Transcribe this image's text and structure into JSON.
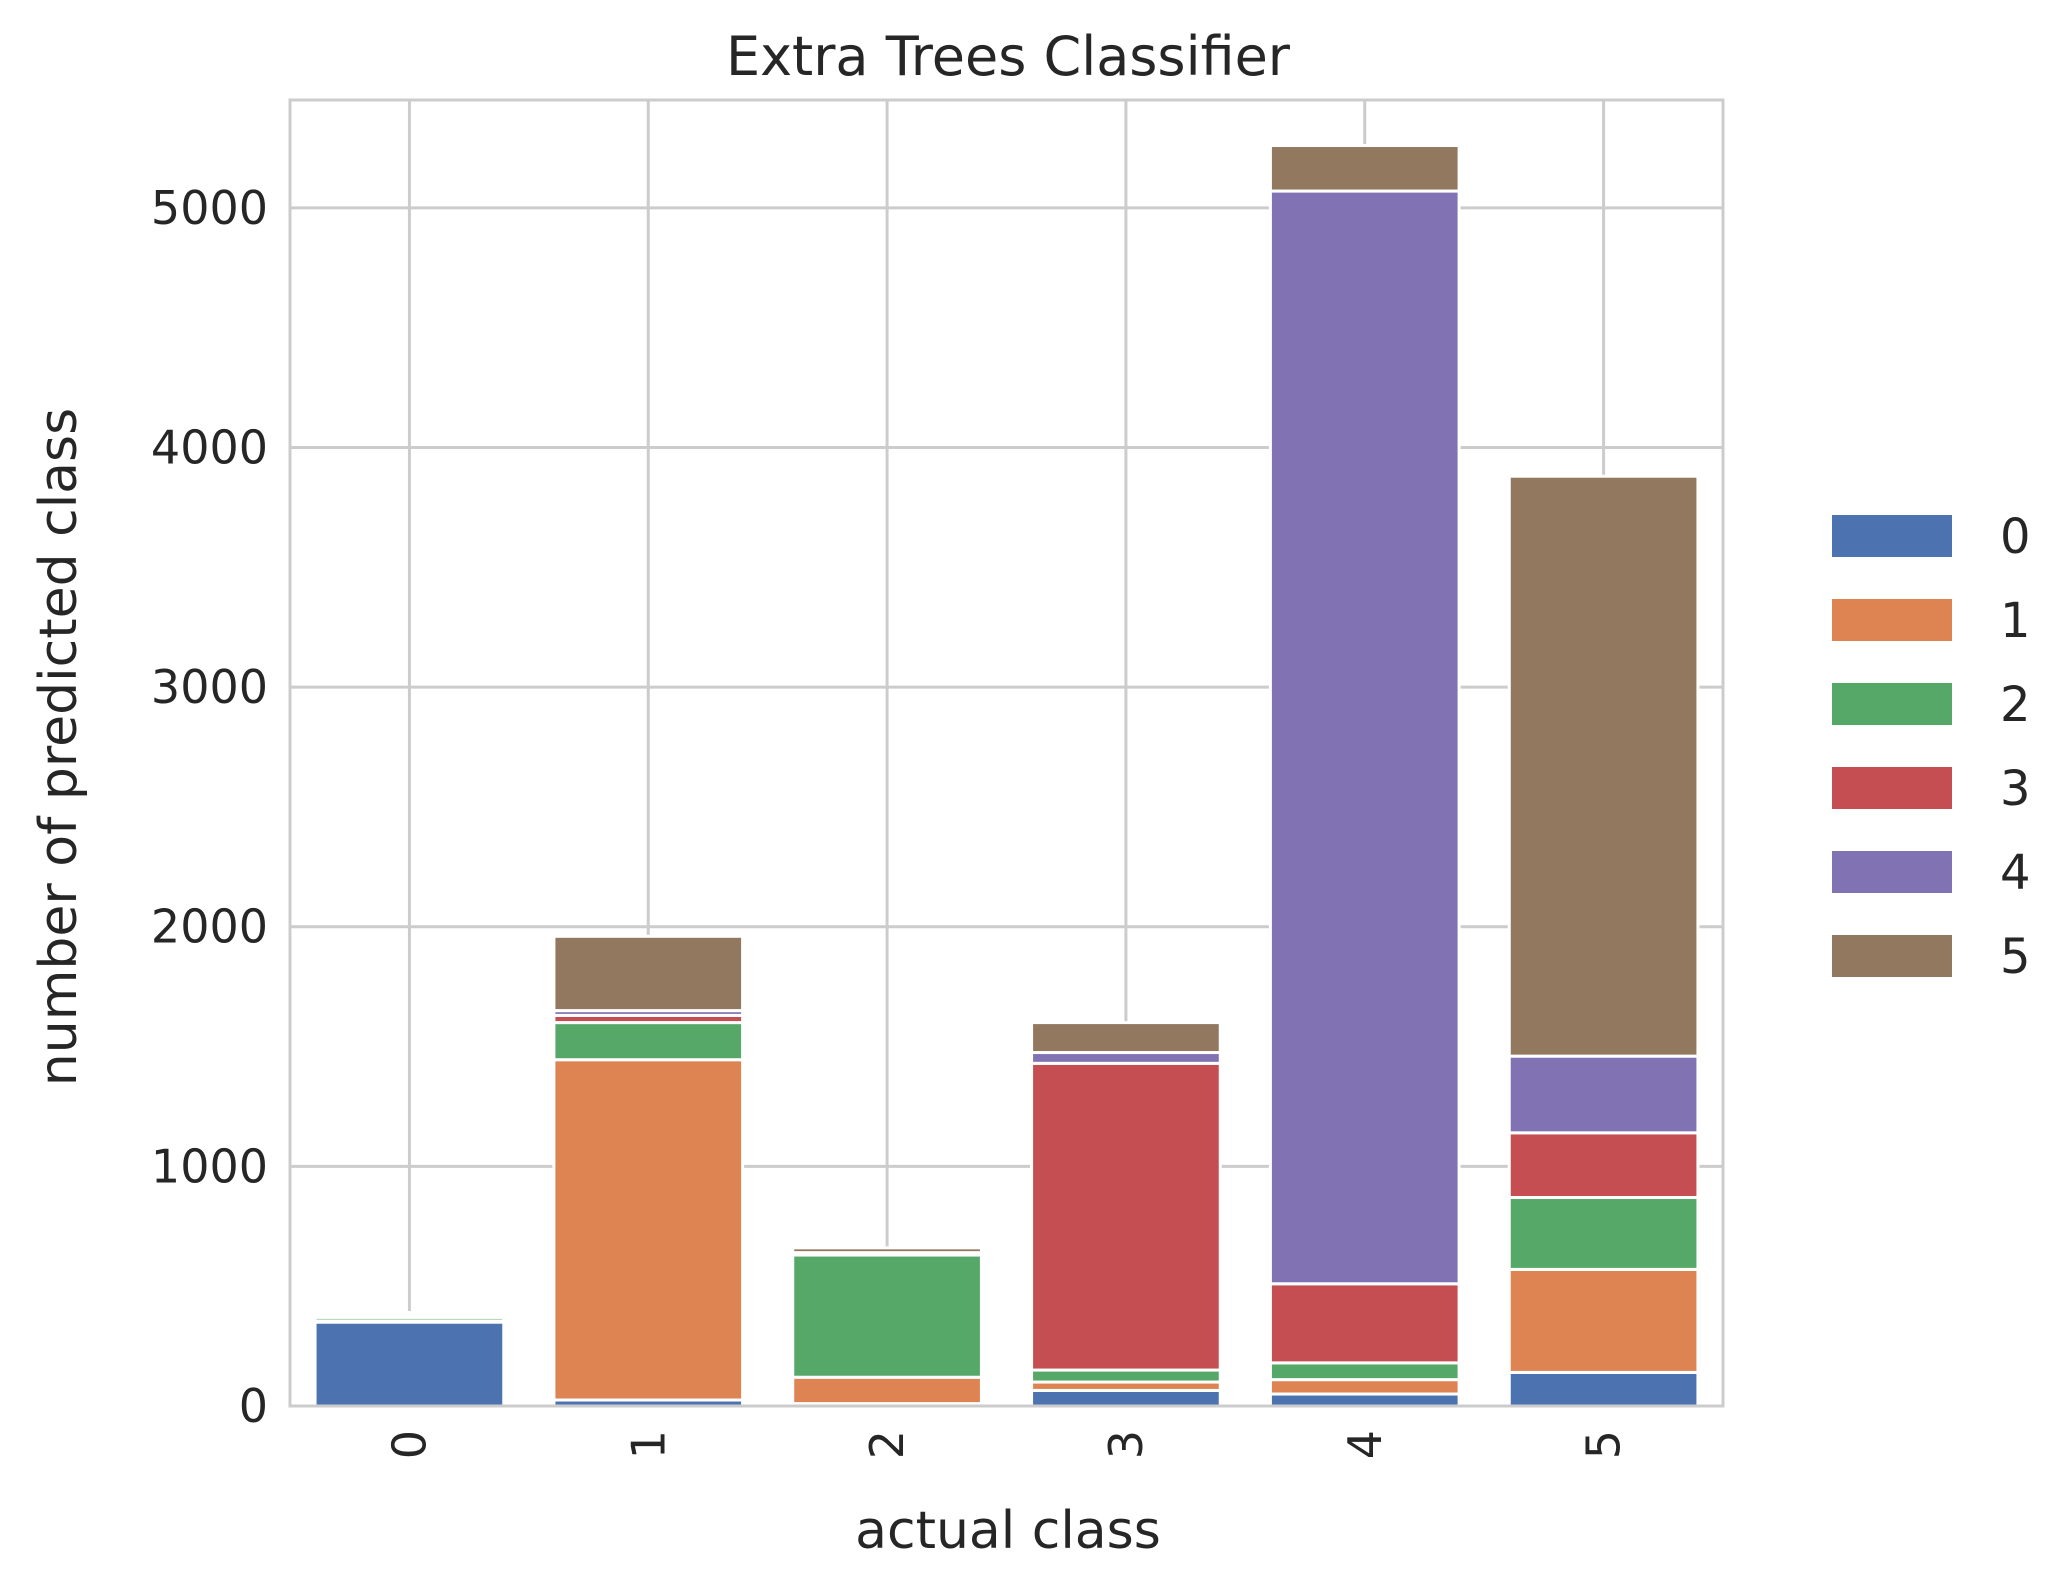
{
  "chart_data": {
    "type": "bar",
    "stacked": true,
    "title": "Extra Trees Classifier",
    "xlabel": "actual class",
    "ylabel": "number of predicted class",
    "categories": [
      "0",
      "1",
      "2",
      "3",
      "4",
      "5"
    ],
    "ylim": [
      0,
      5450
    ],
    "yticks": [
      0,
      1000,
      2000,
      3000,
      4000,
      5000
    ],
    "ytick_labels": [
      "0",
      "1000",
      "2000",
      "3000",
      "4000",
      "5000"
    ],
    "grid": true,
    "legend_position": "center-right",
    "series": [
      {
        "name": "0",
        "color": "#4c72b0",
        "values": [
          350,
          25,
          10,
          65,
          50,
          140
        ]
      },
      {
        "name": "1",
        "color": "#dd8452",
        "values": [
          5,
          1420,
          110,
          35,
          60,
          430
        ]
      },
      {
        "name": "2",
        "color": "#55a868",
        "values": [
          15,
          155,
          510,
          50,
          70,
          300
        ]
      },
      {
        "name": "3",
        "color": "#c44e52",
        "values": [
          5,
          30,
          5,
          1280,
          330,
          270
        ]
      },
      {
        "name": "4",
        "color": "#8172b3",
        "values": [
          5,
          20,
          5,
          45,
          4560,
          320
        ]
      },
      {
        "name": "5",
        "color": "#937860",
        "values": [
          10,
          310,
          20,
          125,
          190,
          2420
        ]
      }
    ]
  }
}
